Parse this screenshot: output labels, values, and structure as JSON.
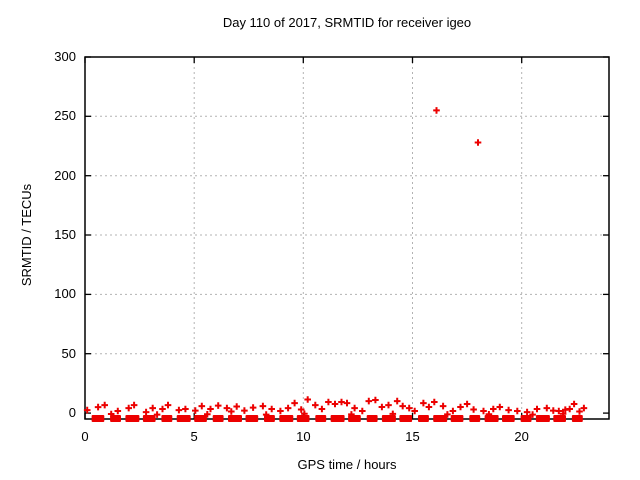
{
  "chart_data": {
    "type": "scatter",
    "title": "Day 110 of 2017, SRMTID for receiver igeo",
    "xlabel": "GPS time / hours",
    "ylabel": "SRMTID / TECUs",
    "xlim": [
      0,
      24
    ],
    "ylim": [
      -5,
      300
    ],
    "xticks": [
      0,
      5,
      10,
      15,
      20
    ],
    "yticks": [
      0,
      50,
      100,
      150,
      200,
      250,
      300
    ],
    "grid": true,
    "legend": "none",
    "colors": {
      "marker": "#ec0000",
      "grid": "#b3b3b3",
      "axis": "#000000",
      "background": "#ffffff"
    },
    "series": [
      {
        "name": "SRMTID",
        "marker": "plus",
        "color": "#ec0000",
        "points": [
          [
            0.1,
            2.5
          ],
          [
            0.6,
            5.0
          ],
          [
            0.9,
            6.7
          ],
          [
            1.2,
            -0.8
          ],
          [
            1.5,
            1.7
          ],
          [
            2.0,
            4.2
          ],
          [
            2.25,
            6.7
          ],
          [
            2.8,
            0.8
          ],
          [
            3.1,
            4.2
          ],
          [
            3.3,
            -1.3
          ],
          [
            3.55,
            3.4
          ],
          [
            3.8,
            6.7
          ],
          [
            4.3,
            2.5
          ],
          [
            4.6,
            3.4
          ],
          [
            5.05,
            2.1
          ],
          [
            5.35,
            5.9
          ],
          [
            5.6,
            -1.0
          ],
          [
            5.75,
            3.4
          ],
          [
            6.1,
            6.3
          ],
          [
            6.5,
            4.2
          ],
          [
            6.7,
            1.3
          ],
          [
            6.95,
            5.5
          ],
          [
            7.3,
            2.1
          ],
          [
            7.7,
            4.6
          ],
          [
            8.15,
            5.9
          ],
          [
            8.3,
            -1.3
          ],
          [
            8.55,
            3.4
          ],
          [
            8.95,
            1.7
          ],
          [
            9.3,
            4.2
          ],
          [
            9.6,
            8.4
          ],
          [
            9.9,
            3.0
          ],
          [
            10.05,
            -0.6
          ],
          [
            10.2,
            11.4
          ],
          [
            10.55,
            6.7
          ],
          [
            10.85,
            3.4
          ],
          [
            11.15,
            9.3
          ],
          [
            11.45,
            7.6
          ],
          [
            11.75,
            9.3
          ],
          [
            12.0,
            8.4
          ],
          [
            12.2,
            -1.1
          ],
          [
            12.35,
            4.2
          ],
          [
            12.7,
            1.7
          ],
          [
            13.0,
            10.1
          ],
          [
            13.3,
            11.0
          ],
          [
            13.6,
            5.1
          ],
          [
            13.9,
            6.7
          ],
          [
            14.1,
            -0.7
          ],
          [
            14.3,
            10.1
          ],
          [
            14.55,
            5.9
          ],
          [
            14.85,
            4.2
          ],
          [
            15.1,
            1.7
          ],
          [
            15.5,
            8.4
          ],
          [
            15.75,
            5.1
          ],
          [
            16.0,
            9.3
          ],
          [
            16.1,
            255
          ],
          [
            16.4,
            5.9
          ],
          [
            16.6,
            -1.1
          ],
          [
            16.85,
            1.7
          ],
          [
            17.2,
            5.1
          ],
          [
            17.5,
            7.6
          ],
          [
            17.8,
            3.0
          ],
          [
            18.0,
            228
          ],
          [
            18.25,
            1.7
          ],
          [
            18.5,
            -1.0
          ],
          [
            18.7,
            3.4
          ],
          [
            19.0,
            5.1
          ],
          [
            19.4,
            2.5
          ],
          [
            19.8,
            1.7
          ],
          [
            20.25,
            0.8
          ],
          [
            20.5,
            -1.3
          ],
          [
            20.7,
            3.4
          ],
          [
            21.15,
            4.2
          ],
          [
            21.45,
            2.1
          ],
          [
            21.7,
            1.7
          ],
          [
            21.9,
            -0.6
          ],
          [
            22.0,
            2.8
          ],
          [
            22.2,
            3.4
          ],
          [
            22.4,
            7.6
          ],
          [
            22.65,
            1.3
          ],
          [
            22.85,
            4.2
          ]
        ]
      }
    ],
    "outlier_values": [
      [
        16.1,
        255
      ],
      [
        18.0,
        228
      ]
    ],
    "baseline_band": {
      "value": -4.6,
      "x_start": 0.3,
      "x_end": 22.9,
      "description": "dense overlapping + markers forming a thick dashed red band along the bottom axis"
    }
  }
}
